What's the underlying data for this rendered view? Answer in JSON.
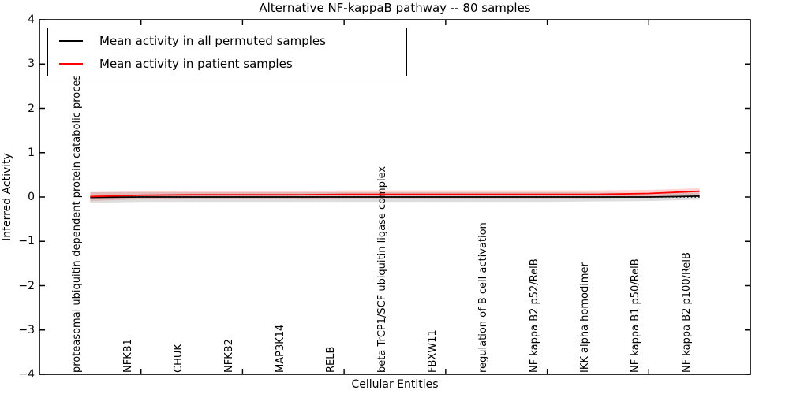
{
  "chart_data": {
    "type": "line",
    "title": "Alternative NF-kappaB pathway -- 80 samples",
    "xlabel": "Cellular Entities",
    "ylabel": "Inferred Activity",
    "ylim": [
      -4,
      4
    ],
    "xlim": [
      -1,
      13
    ],
    "grid": false,
    "legend_position": "upper left",
    "yticks": [
      "4",
      "3",
      "2",
      "1",
      "0",
      "−1",
      "−2",
      "−3",
      "−4"
    ],
    "ytick_values": [
      4,
      3,
      2,
      1,
      0,
      -1,
      -2,
      -3,
      -4
    ],
    "xtick_indices": [
      1,
      3,
      5,
      7,
      9,
      11
    ],
    "zero_line": {
      "value": 0,
      "style": "dotted",
      "color": "#000000"
    },
    "categories": [
      "proteasomal ubiquitin-dependent protein catabolic process",
      "NFKB1",
      "CHUK",
      "NFKB2",
      "MAP3K14",
      "RELB",
      "beta TrCP1/SCF ubiquitin ligase complex",
      "FBXW11",
      "regulation of B cell activation",
      "NF kappa B2 p52/RelB",
      "IKK alpha homodimer",
      "NF kappa B1 p50/RelB",
      "NF kappa B2 p100/RelB"
    ],
    "series": [
      {
        "name": "Mean activity in all permuted samples",
        "color": "#000000",
        "band_color": "rgba(0,0,0,0.13)",
        "values": [
          -0.01,
          0.0,
          0.0,
          0.0,
          0.0,
          0.0,
          0.0,
          0.0,
          0.0,
          0.0,
          0.0,
          0.0,
          0.02
        ],
        "band_halfwidth": [
          0.12,
          0.11,
          0.11,
          0.11,
          0.11,
          0.11,
          0.11,
          0.11,
          0.11,
          0.11,
          0.1,
          0.09,
          0.08
        ]
      },
      {
        "name": "Mean activity in patient samples",
        "color": "#ff0000",
        "band_color": "rgba(255,0,0,0.16)",
        "values": [
          0.01,
          0.04,
          0.05,
          0.05,
          0.05,
          0.06,
          0.06,
          0.06,
          0.06,
          0.06,
          0.06,
          0.08,
          0.13
        ],
        "band_halfwidth": [
          0.1,
          0.09,
          0.09,
          0.09,
          0.09,
          0.09,
          0.09,
          0.09,
          0.09,
          0.09,
          0.09,
          0.08,
          0.07
        ]
      }
    ]
  }
}
